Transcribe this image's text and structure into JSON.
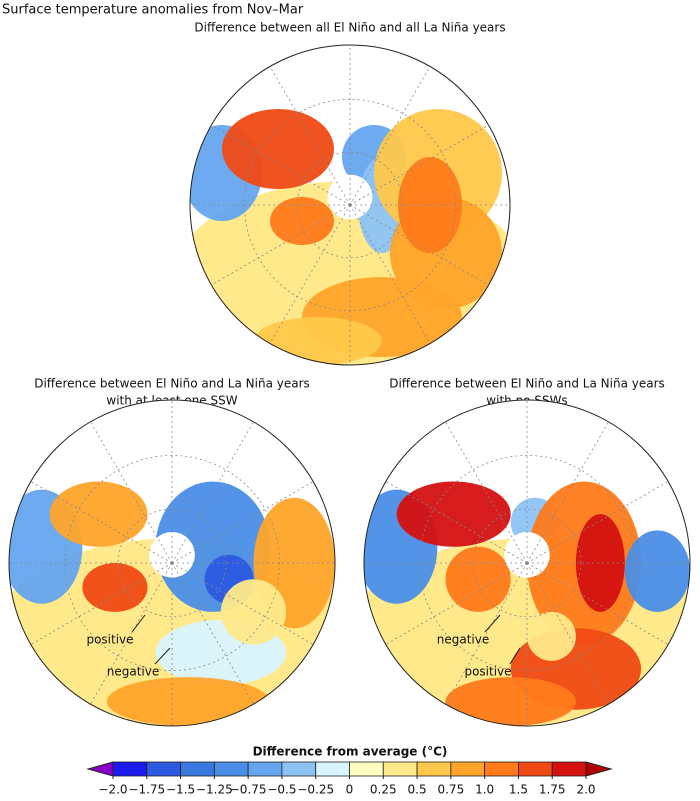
{
  "title": "Surface temperature anomalies from Nov–Mar",
  "panels": [
    {
      "title_lines": [
        "Difference between all El Niño and all La Niña years"
      ],
      "annotations": []
    },
    {
      "title_lines": [
        "Difference between El Niño and La Niña years",
        "with at least one SSW"
      ],
      "annotations": [
        "positive",
        "negative"
      ]
    },
    {
      "title_lines": [
        "Difference between El Niño and La Niña years",
        "with no SSWs"
      ],
      "annotations": [
        "negative",
        "positive"
      ]
    }
  ],
  "colorbar": {
    "label": "Difference from average (°C)",
    "ticks": [
      {
        "value": -2,
        "label": "−2.0"
      },
      {
        "value": -1.75,
        "label": "−1.75"
      },
      {
        "value": -1.5,
        "label": "−1.5"
      },
      {
        "value": -1.25,
        "label": "−1.25"
      },
      {
        "value": -0.75,
        "label": "−0.75"
      },
      {
        "value": -0.5,
        "label": "−0.5"
      },
      {
        "value": -0.25,
        "label": "−0.25"
      },
      0,
      0.25,
      0.5,
      0.75,
      {
        "value": 1,
        "label": "1.0"
      },
      1.5,
      1.75,
      {
        "value": 2,
        "label": "2.0"
      }
    ],
    "colors": [
      "#8a00c8",
      "#1b1bf0",
      "#2c5ae0",
      "#3a78e0",
      "#4a8ee8",
      "#65a5ef",
      "#8cc3f5",
      "#d8f4ff",
      "#ffffc0",
      "#ffe98a",
      "#ffc84a",
      "#ffa42a",
      "#ff7a1a",
      "#f04a14",
      "#d41010",
      "#b00000"
    ]
  }
}
